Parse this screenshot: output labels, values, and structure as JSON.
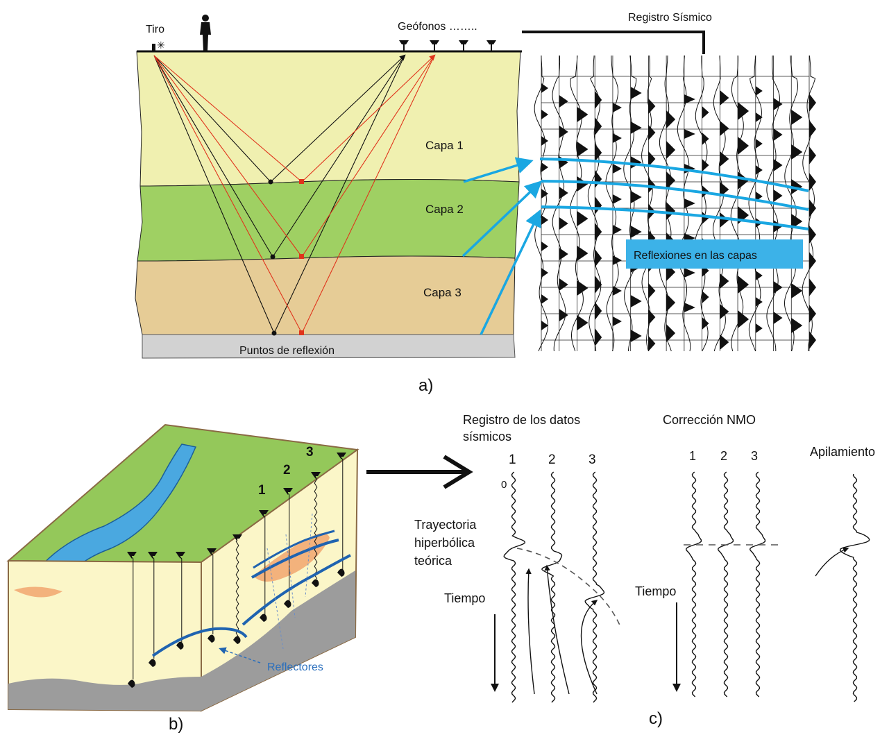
{
  "panel_a": {
    "labels": {
      "shot": "Tiro",
      "geophones": "Geófonos ……..",
      "seismic_record": "Registro Sísmico",
      "layer1": "Capa 1",
      "layer2": "Capa 2",
      "layer3": "Capa 3",
      "reflection_points": "Puntos de reflexión",
      "reflections_box": "Reflexiones en las capas"
    },
    "caption": "a)",
    "colors": {
      "layer1": "#f0f0b0",
      "layer2": "#9fd063",
      "layer3": "#e6cc96",
      "basement": "#d2d2d2",
      "ray_red": "#e0341c",
      "ray_black": "#111111",
      "reflection_blue": "#1aa7e2"
    }
  },
  "panel_b": {
    "labels": {
      "reflectors": "Reflectores",
      "geophone_1": "1",
      "geophone_2": "2",
      "geophone_3": "3"
    },
    "caption": "b)",
    "colors": {
      "surface": "#94c85a",
      "river": "#4aa8e0",
      "subsurface": "#fbf6c8",
      "bedrock": "#9c9c9c",
      "lens": "#f3b27c",
      "reflector": "#1f63b0"
    }
  },
  "panel_c": {
    "labels": {
      "record_title_line1": "Registro de los datos",
      "record_title_line2": "sísmicos",
      "trace_1": "1",
      "trace_2": "2",
      "trace_3": "3",
      "zero": "0",
      "hyperbola_line1": "Trayectoria",
      "hyperbola_line2": "hiperbólica",
      "hyperbola_line3": "teórica",
      "time_left": "Tiempo",
      "nmo_title": "Corrección NMO",
      "nmo_1": "1",
      "nmo_2": "2",
      "nmo_3": "3",
      "time_right": "Tiempo",
      "stack_title": "Apilamiento"
    },
    "caption": "c)"
  }
}
